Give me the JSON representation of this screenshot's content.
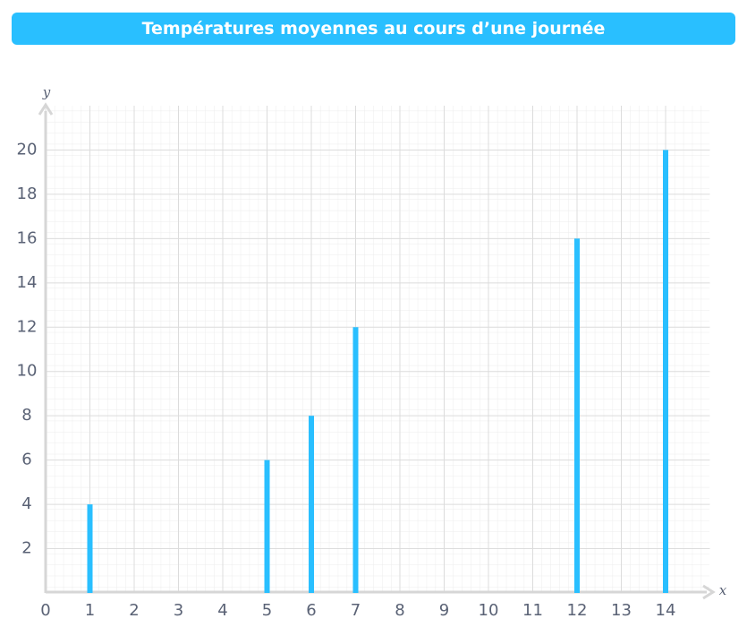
{
  "chart_data": {
    "type": "bar",
    "title": "Températures moyennes au cours d’une journée",
    "x_label": "x",
    "y_label": "y",
    "x": [
      1,
      5,
      6,
      7,
      12,
      14
    ],
    "values": [
      4,
      6,
      8,
      12,
      16,
      20
    ],
    "color": "#29bfff",
    "xlim": [
      0,
      15
    ],
    "ylim": [
      0,
      22
    ],
    "xticks": [
      0,
      1,
      2,
      3,
      4,
      5,
      6,
      7,
      8,
      9,
      10,
      11,
      12,
      13,
      14
    ],
    "yticks": [
      2,
      4,
      6,
      8,
      10,
      12,
      14,
      16,
      18,
      20
    ],
    "grid": true
  }
}
